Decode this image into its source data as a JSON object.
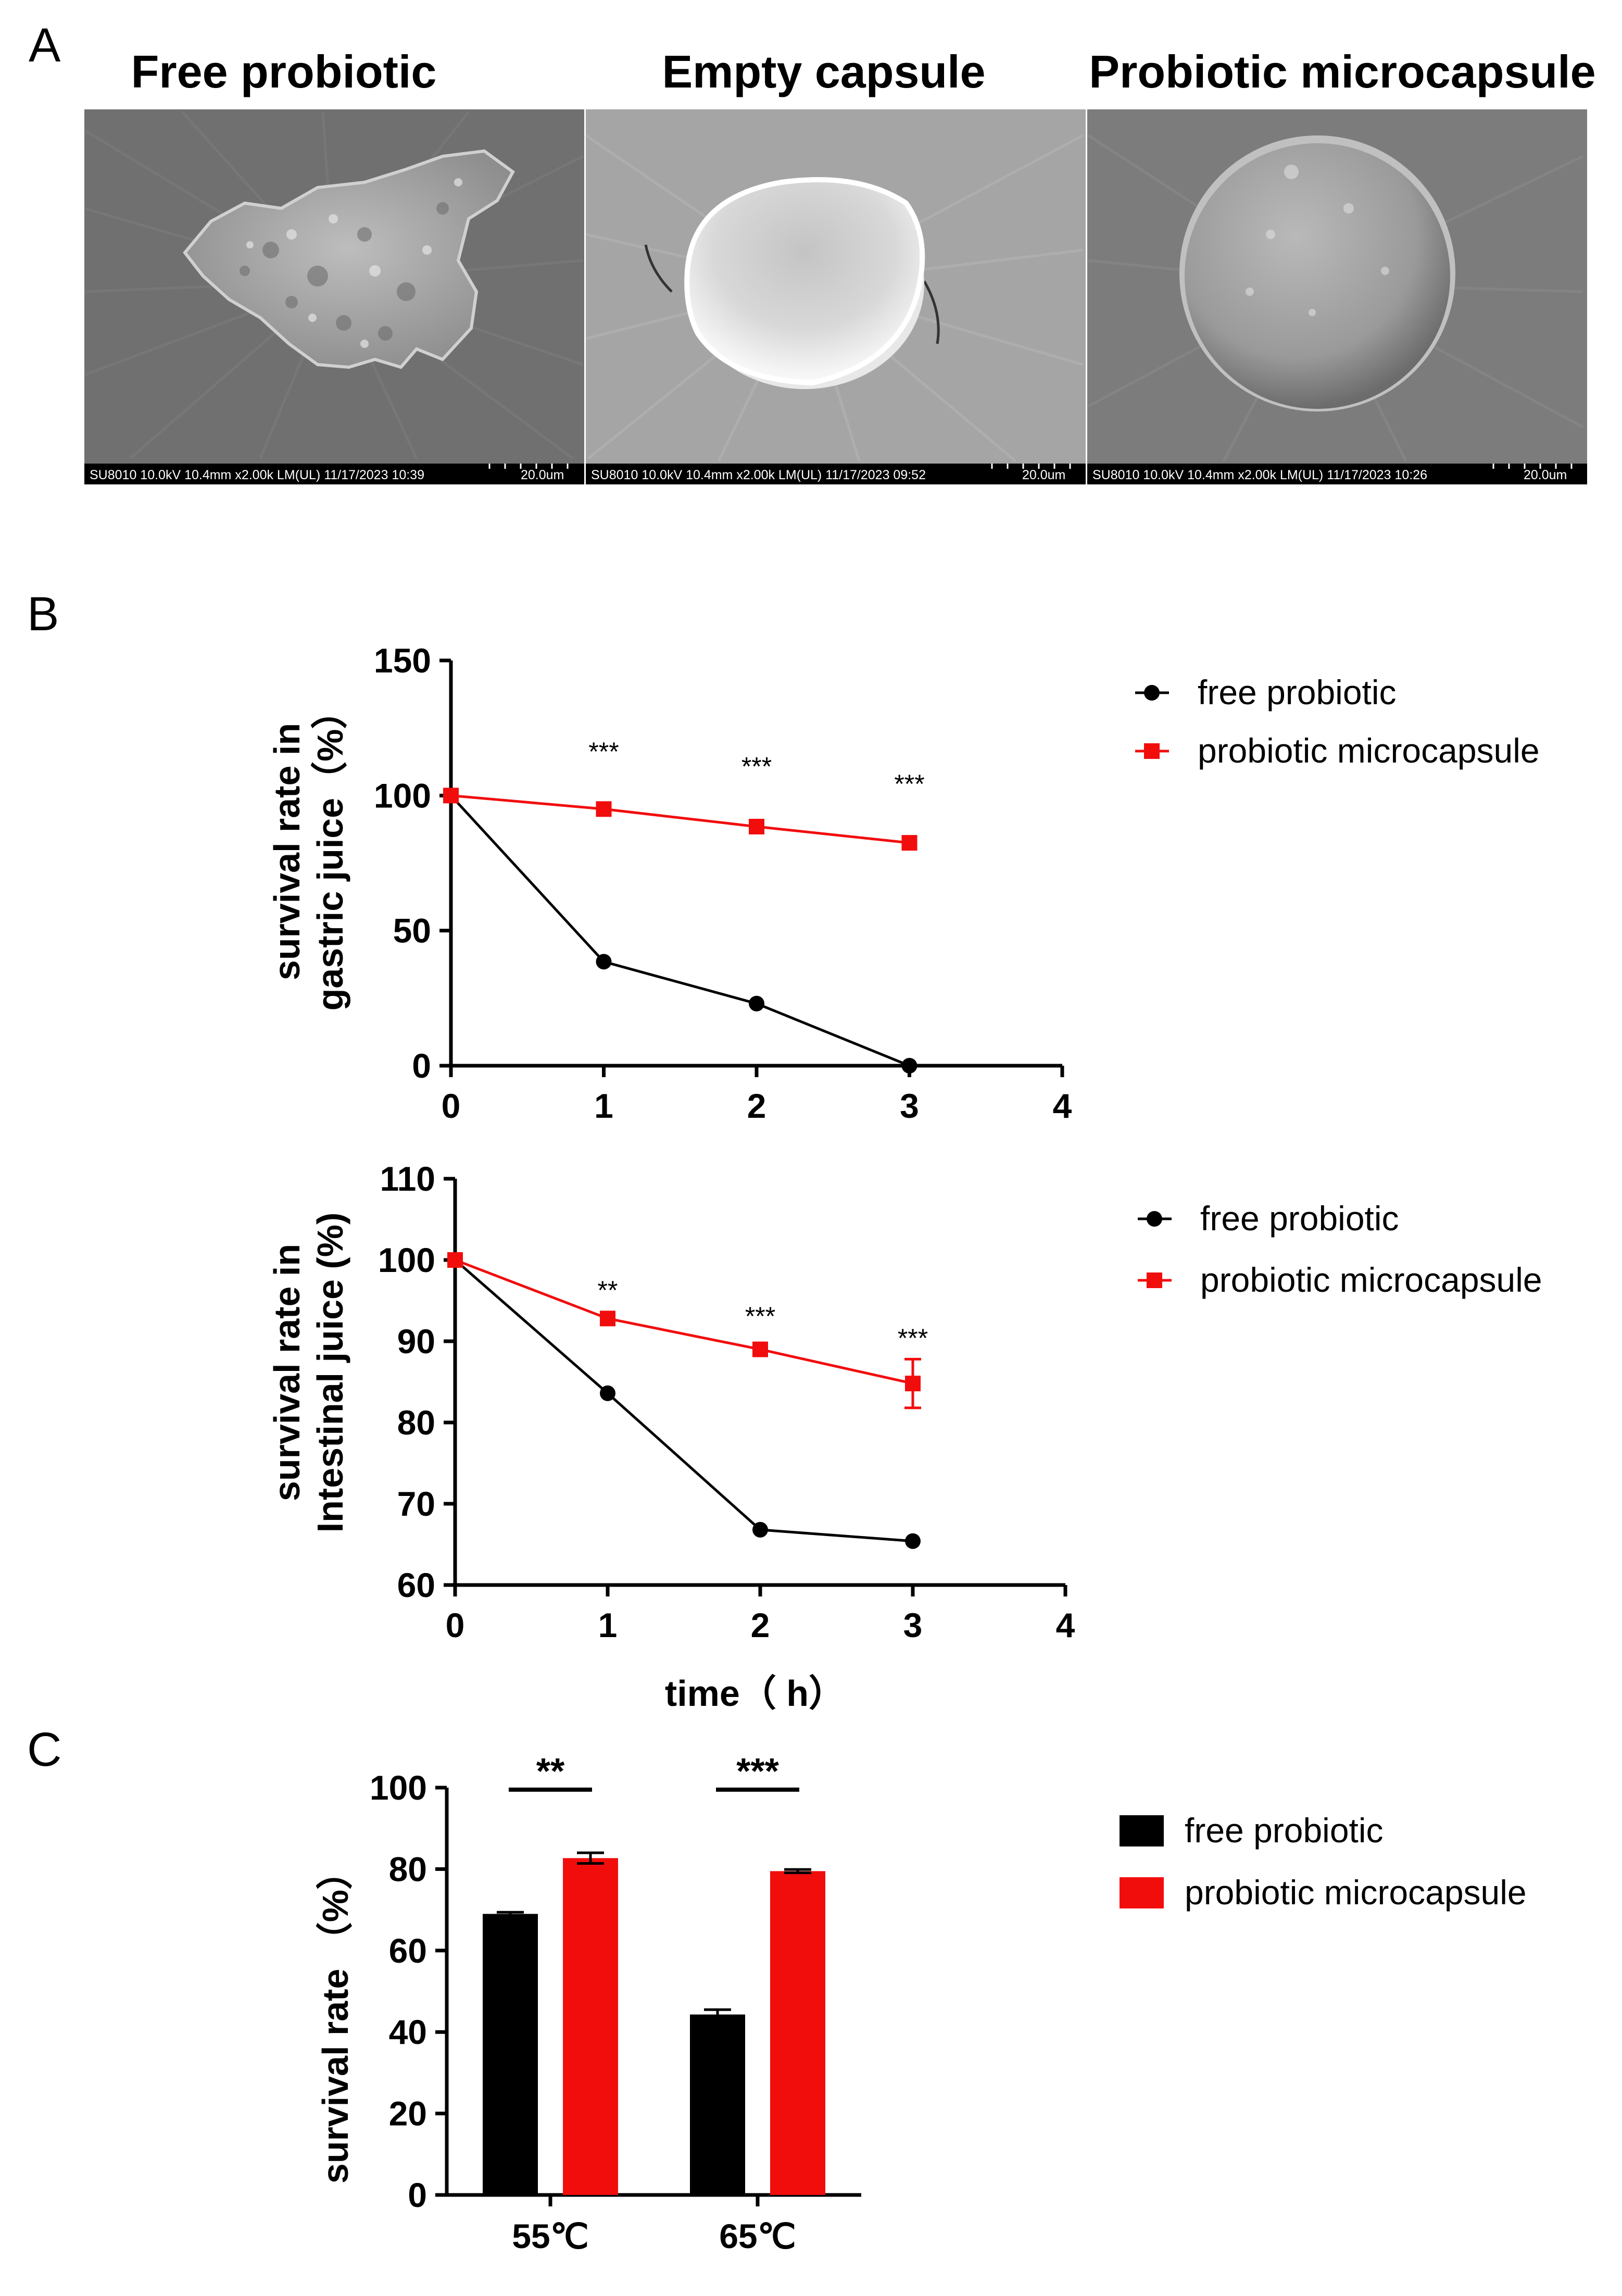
{
  "figure": {
    "panel_labels": [
      "A",
      "B",
      "C"
    ]
  },
  "sem": {
    "panels": [
      {
        "title": "Free probiotic",
        "info": "SU8010 10.0kV 10.4mm x2.00k LM(UL) 11/17/2023 10:39",
        "scale": "20.0um"
      },
      {
        "title": "Empty capsule",
        "info": "SU8010 10.0kV 10.4mm x2.00k LM(UL) 11/17/2023 09:52",
        "scale": "20.0um"
      },
      {
        "title": "Probiotic microcapsule",
        "info": "SU8010 10.0kV 10.4mm x2.00k LM(UL) 11/17/2023 10:26",
        "scale": "20.0um"
      }
    ]
  },
  "colors": {
    "free": "#000000",
    "micro": "#f20d0d",
    "axis": "#000000"
  },
  "chart_data": [
    {
      "type": "line",
      "id": "gastric",
      "ylabel_lines": [
        "survival rate in",
        "gastric juice（%）"
      ],
      "xlabel": "",
      "x_ticks": [
        "0",
        "1",
        "2",
        "3",
        "4"
      ],
      "y_ticks": [
        "0",
        "50",
        "100",
        "150"
      ],
      "xlim": [
        0,
        4
      ],
      "ylim": [
        0,
        150
      ],
      "series": [
        {
          "name": "free probiotic",
          "marker": "circle",
          "x": [
            0,
            1,
            2,
            3
          ],
          "y": [
            100,
            38.5,
            23,
            0
          ],
          "err": [
            0,
            0,
            0,
            0
          ]
        },
        {
          "name": "probiotic microcapsule",
          "marker": "square",
          "x": [
            0,
            1,
            2,
            3
          ],
          "y": [
            100,
            95,
            88.5,
            82.5
          ],
          "err": [
            0,
            0,
            0,
            0
          ]
        }
      ],
      "annotations": [
        {
          "x": 1,
          "y": 113,
          "text": "***"
        },
        {
          "x": 2,
          "y": 107.5,
          "text": "***"
        },
        {
          "x": 3,
          "y": 101,
          "text": "***"
        }
      ]
    },
    {
      "type": "line",
      "id": "intestinal",
      "ylabel_lines": [
        "survival rate in",
        "Intestinal juice (%)"
      ],
      "xlabel": "time（ h）",
      "x_ticks": [
        "0",
        "1",
        "2",
        "3",
        "4"
      ],
      "y_ticks": [
        "60",
        "70",
        "80",
        "90",
        "100",
        "110"
      ],
      "xlim": [
        0,
        4
      ],
      "ylim": [
        60,
        110
      ],
      "series": [
        {
          "name": "free probiotic",
          "marker": "circle",
          "x": [
            0,
            1,
            2,
            3
          ],
          "y": [
            100,
            83.6,
            66.8,
            65.4
          ],
          "err": [
            0,
            0,
            0,
            0
          ]
        },
        {
          "name": "probiotic microcapsule",
          "marker": "square",
          "x": [
            0,
            1,
            2,
            3
          ],
          "y": [
            100,
            92.8,
            89,
            84.8
          ],
          "err": [
            0,
            0,
            0,
            3
          ]
        }
      ],
      "annotations": [
        {
          "x": 1,
          "y": 95.2,
          "text": "**"
        },
        {
          "x": 2,
          "y": 92,
          "text": "***"
        },
        {
          "x": 3,
          "y": 89.3,
          "text": "***"
        }
      ]
    },
    {
      "type": "bar",
      "id": "heat",
      "ylabel": "survival rate （%）",
      "categories": [
        "55℃",
        "65℃"
      ],
      "y_ticks": [
        "0",
        "20",
        "40",
        "60",
        "80",
        "100"
      ],
      "ylim": [
        0,
        100
      ],
      "series": [
        {
          "name": "free probiotic",
          "values": [
            69,
            44.3
          ],
          "err": [
            0.4,
            1.2
          ]
        },
        {
          "name": "probiotic microcapsule",
          "values": [
            82.7,
            79.5
          ],
          "err": [
            1.3,
            0.4
          ]
        }
      ],
      "significance": [
        {
          "category": 0,
          "text": "**",
          "y": 99.5
        },
        {
          "category": 1,
          "text": "***",
          "y": 99.5
        }
      ]
    }
  ],
  "legends": {
    "gastric": [
      "free probiotic",
      "probiotic microcapsule"
    ],
    "intestinal": [
      "free probiotic",
      "probiotic microcapsule"
    ],
    "heat": [
      "free probiotic",
      "probiotic microcapsule"
    ]
  }
}
